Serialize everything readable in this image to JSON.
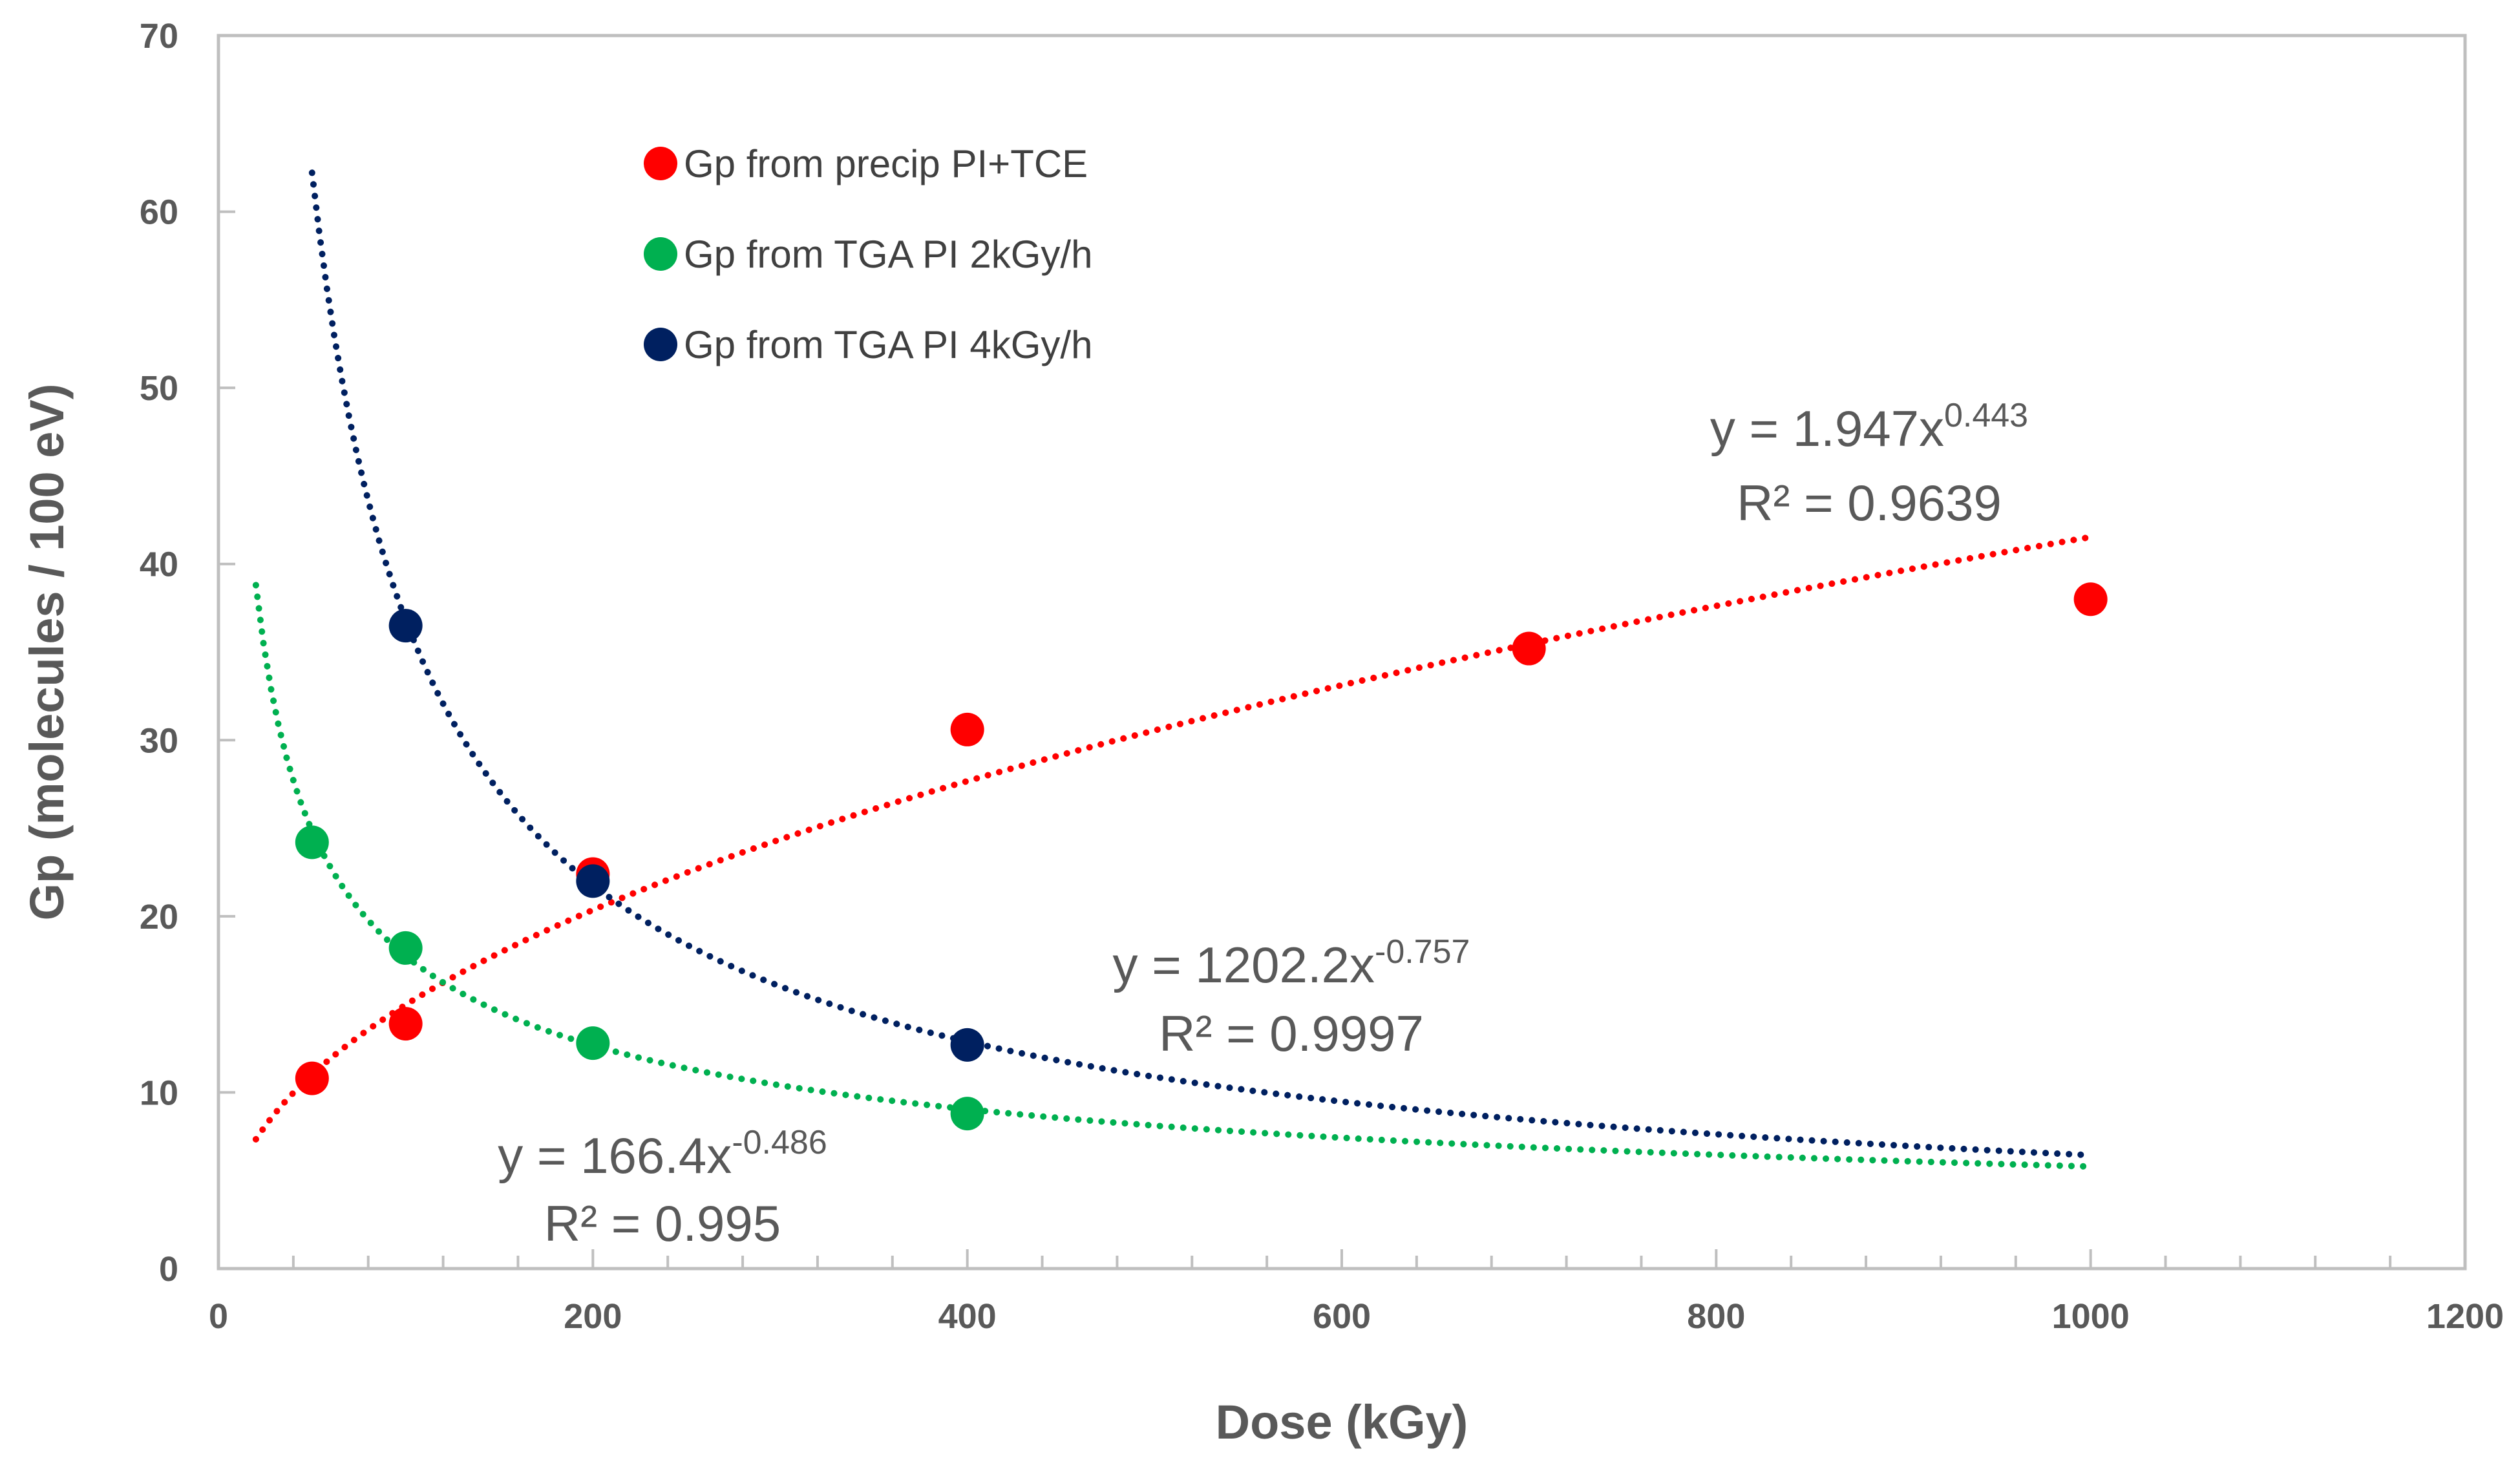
{
  "chart_data": {
    "type": "scatter",
    "title": "",
    "xlabel": "Dose (kGy)",
    "ylabel": "Gp (molecules / 100 eV)",
    "xlim": [
      0,
      1200
    ],
    "ylim": [
      0,
      70
    ],
    "xticks": [
      0,
      200,
      400,
      600,
      800,
      1000,
      1200
    ],
    "yticks": [
      0,
      10,
      20,
      30,
      40,
      50,
      60,
      70
    ],
    "xtick_labels": [
      "0",
      "200",
      "400",
      "600",
      "800",
      "1000",
      "1200"
    ],
    "ytick_labels": [
      "0",
      "10",
      "20",
      "30",
      "40",
      "50",
      "60",
      "70"
    ],
    "x_minor_step": 40,
    "legend_position": "top-left",
    "series": [
      {
        "name": "Gp from precip PI+TCE",
        "color": "#ff0000",
        "x": [
          50,
          100,
          200,
          400,
          700,
          1000
        ],
        "y": [
          10.8,
          13.9,
          22.4,
          30.6,
          35.2,
          38.0
        ],
        "trendline": {
          "type": "power",
          "a": 1.947,
          "b": 0.443,
          "x_range": [
            20,
            1000
          ],
          "equation_prefix": "y = 1.947x",
          "equation_exponent": "0.443",
          "r2_label": "R² = 0.9639"
        }
      },
      {
        "name": "Gp from TGA PI 2kGy/h",
        "color": "#00b050",
        "x": [
          50,
          100,
          200,
          400
        ],
        "y": [
          24.2,
          18.2,
          12.8,
          8.8
        ],
        "trendline": {
          "type": "power",
          "a": 166.4,
          "b": -0.486,
          "x_range": [
            20,
            1000
          ],
          "equation_prefix": "y = 166.4x",
          "equation_exponent": "-0.486",
          "r2_label": "R² = 0.995"
        }
      },
      {
        "name": "Gp from TGA PI 4kGy/h",
        "color": "#002060",
        "x": [
          100,
          200,
          400
        ],
        "y": [
          36.5,
          22.0,
          12.7
        ],
        "trendline": {
          "type": "power",
          "a": 1202.2,
          "b": -0.757,
          "x_range": [
            50,
            1000
          ],
          "equation_prefix": "y = 1202.2x",
          "equation_exponent": "-0.757",
          "r2_label": "R² = 0.9997"
        }
      }
    ]
  }
}
